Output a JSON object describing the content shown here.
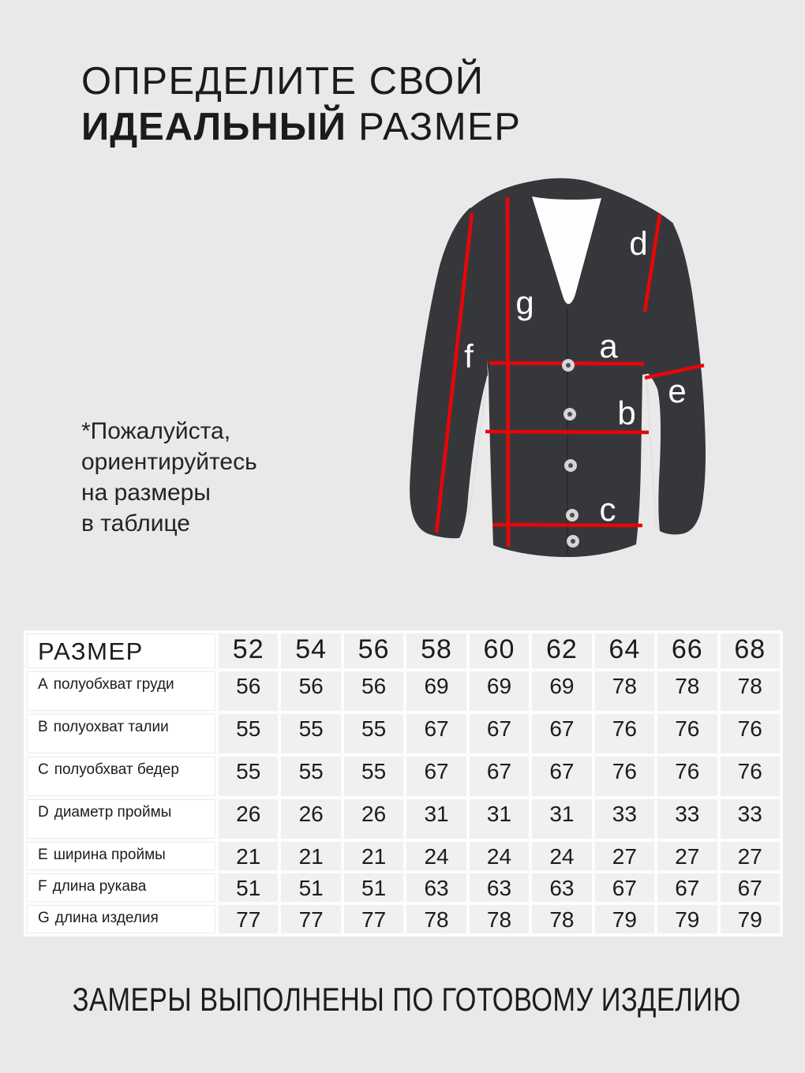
{
  "page": {
    "background": "#e9e9e9",
    "text_color": "#1c1c1c"
  },
  "title": {
    "line1": "ОПРЕДЕЛИТЕ СВОЙ",
    "line2_bold": "ИДЕАЛЬНЫЙ",
    "line2_regular": " РАЗМЕР"
  },
  "note": {
    "text": "*Пожалуйста,\nориентируйтесь\nна размеры\nв таблице"
  },
  "garment": {
    "kind": "cardigan-with-measurement-lines",
    "body_color": "#36373b",
    "line_color": "#ea0506",
    "label_color": "#ffffff",
    "labels": {
      "a": "a",
      "b": "b",
      "c": "c",
      "d": "d",
      "e": "e",
      "f": "f",
      "g": "g"
    }
  },
  "table": {
    "corner_label": "РАЗМЕР",
    "sizes": [
      "52",
      "54",
      "56",
      "58",
      "60",
      "62",
      "64",
      "66",
      "68"
    ],
    "rows": [
      {
        "letter": "А",
        "label": "полуобхват груди",
        "values": [
          "56",
          "56",
          "56",
          "69",
          "69",
          "69",
          "78",
          "78",
          "78"
        ]
      },
      {
        "letter": "В",
        "label": "полуохват талии",
        "values": [
          "55",
          "55",
          "55",
          "67",
          "67",
          "67",
          "76",
          "76",
          "76"
        ]
      },
      {
        "letter": "С",
        "label": "полуобхват бедер",
        "values": [
          "55",
          "55",
          "55",
          "67",
          "67",
          "67",
          "76",
          "76",
          "76"
        ]
      },
      {
        "letter": "D",
        "label": "диаметр проймы",
        "values": [
          "26",
          "26",
          "26",
          "31",
          "31",
          "31",
          "33",
          "33",
          "33"
        ]
      },
      {
        "letter": "Е",
        "label": "ширина проймы",
        "values": [
          "21",
          "21",
          "21",
          "24",
          "24",
          "24",
          "27",
          "27",
          "27"
        ]
      },
      {
        "letter": "F",
        "label": "длина рукава",
        "values": [
          "51",
          "51",
          "51",
          "63",
          "63",
          "63",
          "67",
          "67",
          "67"
        ]
      },
      {
        "letter": "G",
        "label": "длина изделия",
        "values": [
          "77",
          "77",
          "77",
          "78",
          "78",
          "78",
          "79",
          "79",
          "79"
        ]
      }
    ]
  },
  "footer": {
    "text": "ЗАМЕРЫ ВЫПОЛНЕНЫ ПО ГОТОВОМУ ИЗДЕЛИЮ"
  }
}
